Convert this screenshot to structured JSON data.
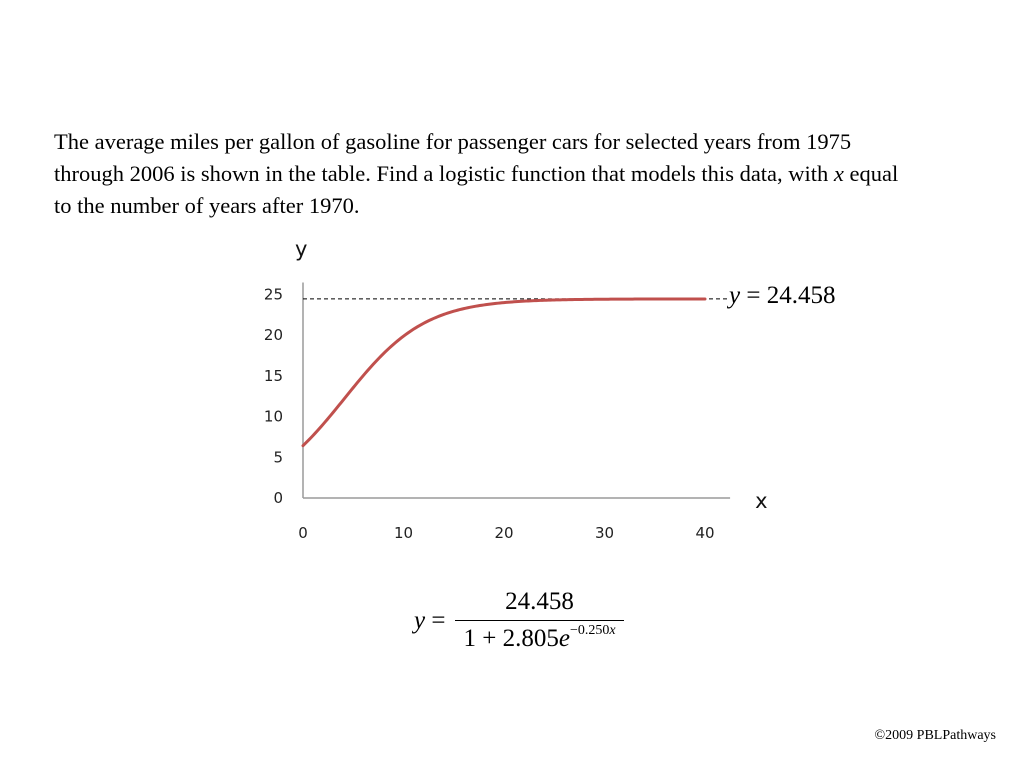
{
  "problem": {
    "before_x": "The average miles per gallon of gasoline for passenger cars for selected years from 1975 through 2006 is shown in the table. Find a logistic function that models this data, with ",
    "x_var": "x",
    "after_x": " equal to the number of years after 1970."
  },
  "asymptote_label": {
    "var": "y",
    "eq": " = ",
    "value": "24.458"
  },
  "formula": {
    "lhs_var": "y",
    "eq": " = ",
    "numerator": "24.458",
    "den_prefix": "1 + 2.805",
    "den_base": "e",
    "exponent": "−0.250",
    "exponent_var": "x"
  },
  "copyright": "©2009 PBLPathways",
  "chart_data": {
    "type": "line",
    "title": "",
    "xlabel": "x",
    "ylabel": "y",
    "xlim": [
      0,
      42
    ],
    "ylim": [
      0,
      25
    ],
    "xticks": [
      "0",
      "10",
      "20",
      "30",
      "40"
    ],
    "yticks": [
      "0",
      "5",
      "10",
      "15",
      "20",
      "25"
    ],
    "grid": false,
    "model": {
      "c": 24.458,
      "a": 2.805,
      "b": 0.25
    },
    "asymptote": 24.458,
    "series": [
      {
        "color": "#c0504d",
        "x": [
          0,
          2,
          4,
          6,
          8,
          10,
          12,
          14,
          16,
          18,
          20,
          22,
          24,
          26,
          28,
          30,
          32,
          34,
          36,
          38,
          40
        ],
        "y": [
          6.43,
          8.98,
          12.02,
          15.19,
          18.06,
          20.33,
          21.95,
          22.99,
          23.63,
          24.01,
          24.22,
          24.33,
          24.4,
          24.43,
          24.45,
          24.45,
          24.46,
          24.46,
          24.46,
          24.46,
          24.46
        ]
      }
    ],
    "asymptote_color": "#000000"
  }
}
